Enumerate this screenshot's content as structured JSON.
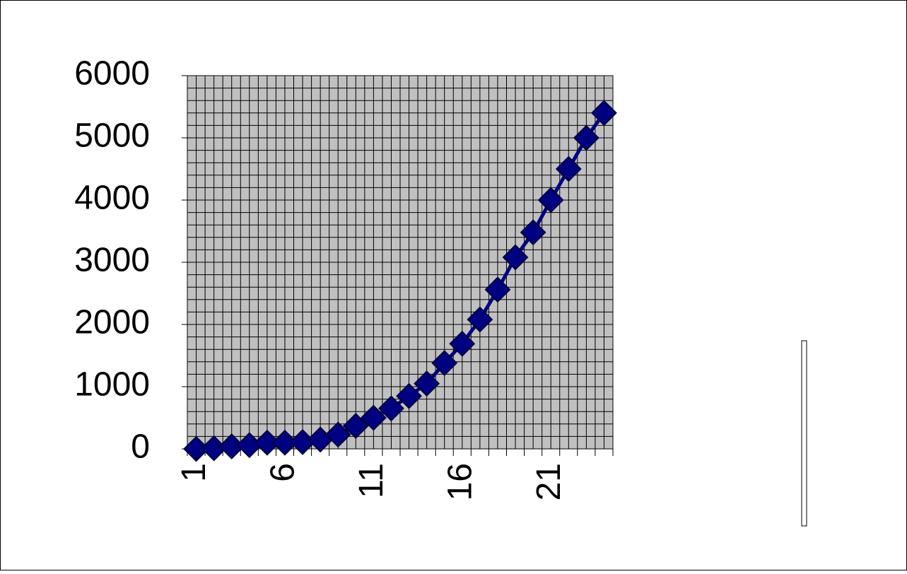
{
  "chart_data": {
    "type": "line",
    "categories": [
      1,
      null,
      null,
      null,
      null,
      6,
      null,
      null,
      null,
      null,
      11,
      null,
      null,
      null,
      null,
      16,
      null,
      null,
      null,
      null,
      21,
      null,
      null,
      null
    ],
    "series": [
      {
        "color": "#000080",
        "values": [
          0,
          10,
          40,
          60,
          100,
          100,
          110,
          150,
          230,
          370,
          500,
          650,
          850,
          1050,
          1380,
          1690,
          2080,
          2560,
          3080,
          3480,
          4000,
          4500,
          5000,
          5400
        ]
      }
    ],
    "ylim": [
      0,
      6000
    ],
    "yticks": [
      0,
      1000,
      2000,
      3000,
      4000,
      5000,
      6000
    ],
    "grid": true,
    "minor_grid": true
  }
}
